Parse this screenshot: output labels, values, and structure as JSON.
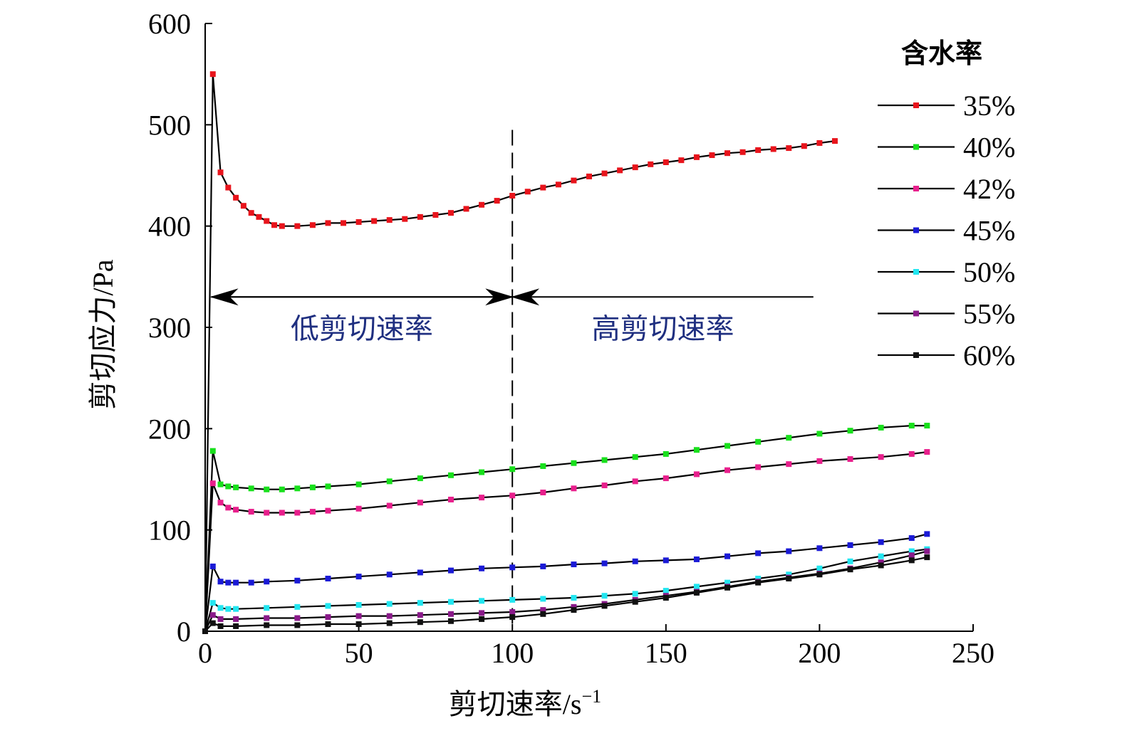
{
  "chart_data": {
    "type": "line",
    "xlabel": "剪切速率/s",
    "xlabel_sup": "−1",
    "ylabel": "剪切应力/Pa",
    "xlim": [
      0,
      250
    ],
    "ylim": [
      0,
      600
    ],
    "xticks": [
      0,
      50,
      100,
      150,
      200,
      250
    ],
    "yticks": [
      0,
      100,
      200,
      300,
      400,
      500,
      600
    ],
    "legend": {
      "title": "含水率",
      "position": "top-right"
    },
    "annotations": {
      "low_region": "低剪切速率",
      "high_region": "高剪切速率",
      "divider_x": 100,
      "arrow_y": 330,
      "low_region_x": [
        2,
        100
      ],
      "high_region_x": [
        100,
        198
      ]
    },
    "series": [
      {
        "name": "35%",
        "color": "#e8141c",
        "points": [
          [
            0,
            0
          ],
          [
            2.5,
            550
          ],
          [
            5,
            453
          ],
          [
            7.5,
            438
          ],
          [
            10,
            428
          ],
          [
            12.5,
            420
          ],
          [
            15,
            413
          ],
          [
            17.5,
            409
          ],
          [
            20,
            405
          ],
          [
            22.5,
            401
          ],
          [
            25,
            400
          ],
          [
            30,
            400
          ],
          [
            35,
            401
          ],
          [
            40,
            403
          ],
          [
            45,
            403
          ],
          [
            50,
            404
          ],
          [
            55,
            405
          ],
          [
            60,
            406
          ],
          [
            65,
            407
          ],
          [
            70,
            409
          ],
          [
            75,
            411
          ],
          [
            80,
            413
          ],
          [
            85,
            417
          ],
          [
            90,
            421
          ],
          [
            95,
            425
          ],
          [
            100,
            430
          ],
          [
            105,
            434
          ],
          [
            110,
            438
          ],
          [
            115,
            441
          ],
          [
            120,
            445
          ],
          [
            125,
            449
          ],
          [
            130,
            452
          ],
          [
            135,
            455
          ],
          [
            140,
            458
          ],
          [
            145,
            461
          ],
          [
            150,
            463
          ],
          [
            155,
            465
          ],
          [
            160,
            468
          ],
          [
            165,
            470
          ],
          [
            170,
            472
          ],
          [
            175,
            473
          ],
          [
            180,
            475
          ],
          [
            185,
            476
          ],
          [
            190,
            477
          ],
          [
            195,
            479
          ],
          [
            200,
            482
          ],
          [
            205,
            484
          ]
        ]
      },
      {
        "name": "40%",
        "color": "#18e01c",
        "points": [
          [
            0,
            0
          ],
          [
            2.5,
            178
          ],
          [
            5,
            145
          ],
          [
            7.5,
            143
          ],
          [
            10,
            142
          ],
          [
            15,
            141
          ],
          [
            20,
            140
          ],
          [
            25,
            140
          ],
          [
            30,
            141
          ],
          [
            35,
            142
          ],
          [
            40,
            143
          ],
          [
            50,
            145
          ],
          [
            60,
            148
          ],
          [
            70,
            151
          ],
          [
            80,
            154
          ],
          [
            90,
            157
          ],
          [
            100,
            160
          ],
          [
            110,
            163
          ],
          [
            120,
            166
          ],
          [
            130,
            169
          ],
          [
            140,
            172
          ],
          [
            150,
            175
          ],
          [
            160,
            179
          ],
          [
            170,
            183
          ],
          [
            180,
            187
          ],
          [
            190,
            191
          ],
          [
            200,
            195
          ],
          [
            210,
            198
          ],
          [
            220,
            201
          ],
          [
            230,
            203
          ],
          [
            235,
            203
          ]
        ]
      },
      {
        "name": "42%",
        "color": "#e81f8c",
        "points": [
          [
            0,
            0
          ],
          [
            2.5,
            146
          ],
          [
            5,
            127
          ],
          [
            7.5,
            122
          ],
          [
            10,
            120
          ],
          [
            15,
            118
          ],
          [
            20,
            117
          ],
          [
            25,
            117
          ],
          [
            30,
            117
          ],
          [
            35,
            118
          ],
          [
            40,
            119
          ],
          [
            50,
            121
          ],
          [
            60,
            124
          ],
          [
            70,
            127
          ],
          [
            80,
            130
          ],
          [
            90,
            132
          ],
          [
            100,
            134
          ],
          [
            110,
            137
          ],
          [
            120,
            141
          ],
          [
            130,
            144
          ],
          [
            140,
            148
          ],
          [
            150,
            151
          ],
          [
            160,
            155
          ],
          [
            170,
            159
          ],
          [
            180,
            162
          ],
          [
            190,
            165
          ],
          [
            200,
            168
          ],
          [
            210,
            170
          ],
          [
            220,
            172
          ],
          [
            230,
            175
          ],
          [
            235,
            177
          ]
        ]
      },
      {
        "name": "45%",
        "color": "#1a1ad6",
        "points": [
          [
            0,
            0
          ],
          [
            2.5,
            64
          ],
          [
            5,
            49
          ],
          [
            7.5,
            48
          ],
          [
            10,
            48
          ],
          [
            15,
            48
          ],
          [
            20,
            49
          ],
          [
            30,
            50
          ],
          [
            40,
            52
          ],
          [
            50,
            54
          ],
          [
            60,
            56
          ],
          [
            70,
            58
          ],
          [
            80,
            60
          ],
          [
            90,
            62
          ],
          [
            100,
            63
          ],
          [
            110,
            64
          ],
          [
            120,
            66
          ],
          [
            130,
            67
          ],
          [
            140,
            69
          ],
          [
            150,
            70
          ],
          [
            160,
            71
          ],
          [
            170,
            74
          ],
          [
            180,
            77
          ],
          [
            190,
            79
          ],
          [
            200,
            82
          ],
          [
            210,
            85
          ],
          [
            220,
            88
          ],
          [
            230,
            92
          ],
          [
            235,
            96
          ]
        ]
      },
      {
        "name": "50%",
        "color": "#22e6f0",
        "points": [
          [
            0,
            0
          ],
          [
            2.5,
            28
          ],
          [
            5,
            23
          ],
          [
            7.5,
            22
          ],
          [
            10,
            22
          ],
          [
            20,
            23
          ],
          [
            30,
            24
          ],
          [
            40,
            25
          ],
          [
            50,
            26
          ],
          [
            60,
            27
          ],
          [
            70,
            28
          ],
          [
            80,
            29
          ],
          [
            90,
            30
          ],
          [
            100,
            31
          ],
          [
            110,
            32
          ],
          [
            120,
            33
          ],
          [
            130,
            35
          ],
          [
            140,
            37
          ],
          [
            150,
            40
          ],
          [
            160,
            44
          ],
          [
            170,
            48
          ],
          [
            180,
            52
          ],
          [
            190,
            56
          ],
          [
            200,
            62
          ],
          [
            210,
            69
          ],
          [
            220,
            74
          ],
          [
            230,
            79
          ],
          [
            235,
            81
          ]
        ]
      },
      {
        "name": "55%",
        "color": "#8a1a8a",
        "points": [
          [
            0,
            0
          ],
          [
            2.5,
            16
          ],
          [
            5,
            12
          ],
          [
            10,
            12
          ],
          [
            20,
            13
          ],
          [
            30,
            13
          ],
          [
            40,
            14
          ],
          [
            50,
            15
          ],
          [
            60,
            15
          ],
          [
            70,
            16
          ],
          [
            80,
            17
          ],
          [
            90,
            18
          ],
          [
            100,
            19
          ],
          [
            110,
            21
          ],
          [
            120,
            24
          ],
          [
            130,
            27
          ],
          [
            140,
            31
          ],
          [
            150,
            35
          ],
          [
            160,
            39
          ],
          [
            170,
            44
          ],
          [
            180,
            49
          ],
          [
            190,
            53
          ],
          [
            200,
            57
          ],
          [
            210,
            62
          ],
          [
            220,
            68
          ],
          [
            230,
            75
          ],
          [
            235,
            79
          ]
        ]
      },
      {
        "name": "60%",
        "color": "#111111",
        "points": [
          [
            0,
            0
          ],
          [
            2.5,
            8
          ],
          [
            5,
            5
          ],
          [
            10,
            5
          ],
          [
            20,
            6
          ],
          [
            30,
            6
          ],
          [
            40,
            7
          ],
          [
            50,
            7
          ],
          [
            60,
            8
          ],
          [
            70,
            9
          ],
          [
            80,
            10
          ],
          [
            90,
            12
          ],
          [
            100,
            14
          ],
          [
            110,
            17
          ],
          [
            120,
            21
          ],
          [
            130,
            25
          ],
          [
            140,
            29
          ],
          [
            150,
            33
          ],
          [
            160,
            38
          ],
          [
            170,
            43
          ],
          [
            180,
            48
          ],
          [
            190,
            52
          ],
          [
            200,
            56
          ],
          [
            210,
            61
          ],
          [
            220,
            65
          ],
          [
            230,
            70
          ],
          [
            235,
            73
          ]
        ]
      }
    ]
  }
}
